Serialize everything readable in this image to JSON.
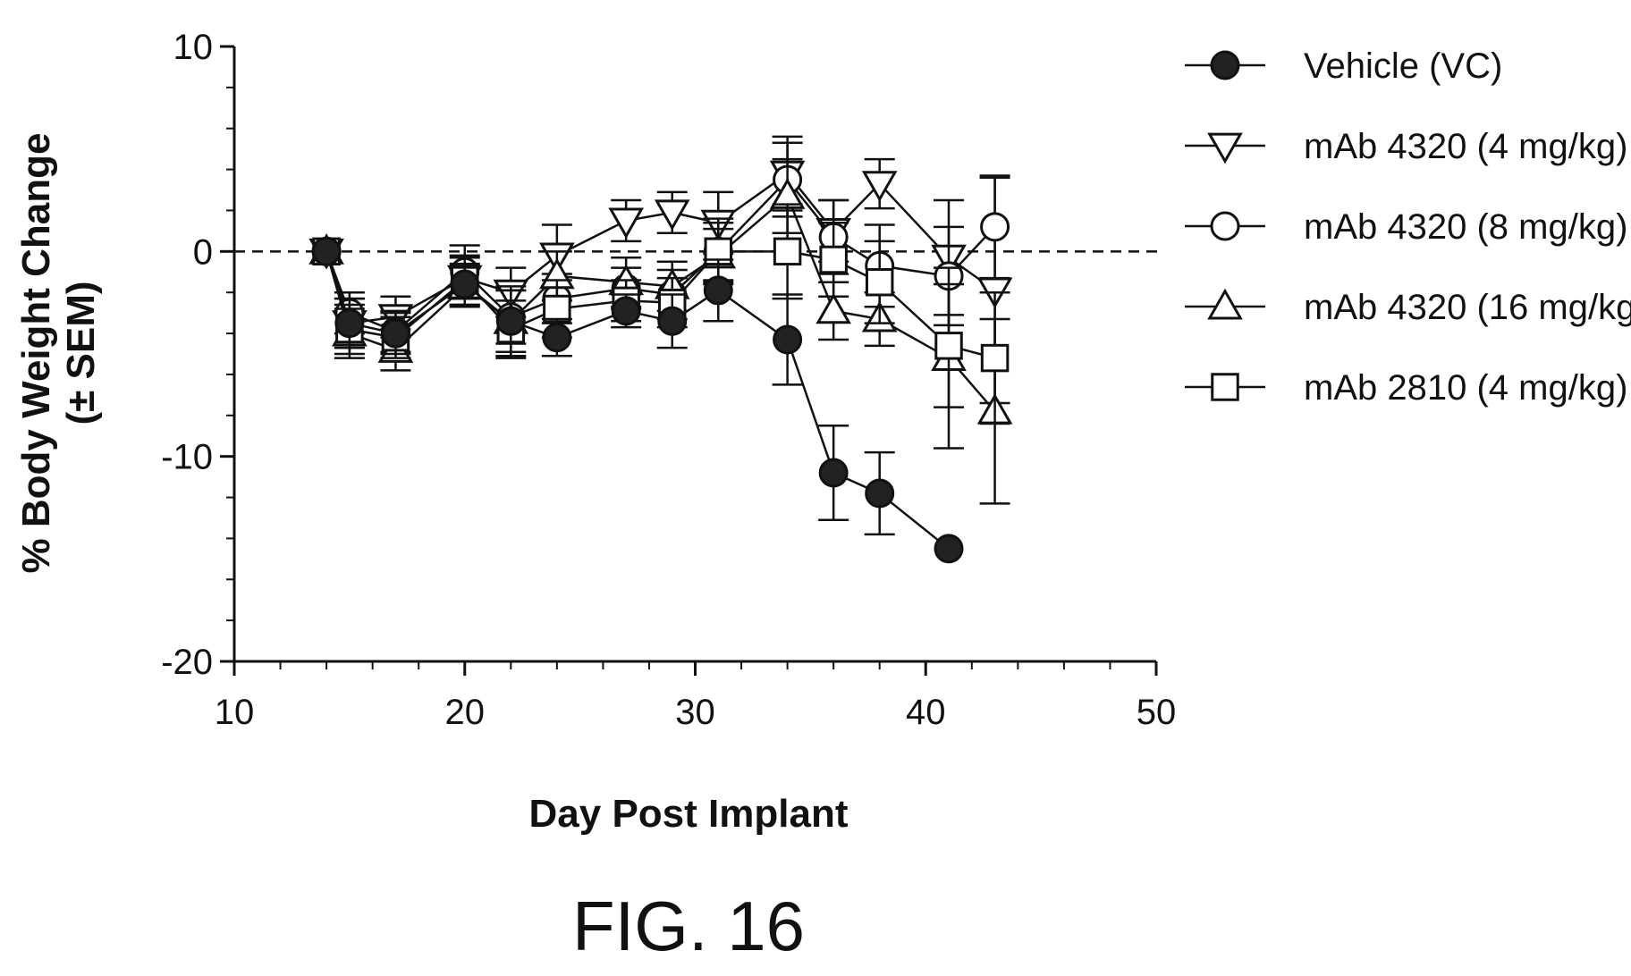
{
  "chart_data": {
    "type": "line",
    "title": "",
    "xlabel": "Day Post Implant",
    "ylabel_line1": "% Body Weight Change",
    "ylabel_line2": "(± SEM)",
    "xlim": [
      10,
      50
    ],
    "ylim": [
      -20,
      10
    ],
    "x_ticks": [
      "10",
      "20",
      "30",
      "40",
      "50"
    ],
    "y_ticks": [
      "10",
      "0",
      "-10",
      "-20"
    ],
    "reference_line_y": 0,
    "grid": false,
    "legend_position": "right",
    "series": [
      {
        "name": "Vehicle (VC)",
        "marker": "circle-filled",
        "x": [
          14,
          15,
          17,
          20,
          22,
          24,
          27,
          29,
          31,
          34,
          36,
          38,
          41
        ],
        "y": [
          0,
          -3.5,
          -4,
          -1.6,
          -3.4,
          -4.2,
          -2.9,
          -3.4,
          -1.9,
          -4.3,
          -10.8,
          -11.8,
          -14.5
        ],
        "err": [
          0,
          1.2,
          1.0,
          1.0,
          1.7,
          0.9,
          0.8,
          1.3,
          1.5,
          2.2,
          2.3,
          2.0,
          0
        ]
      },
      {
        "name": "mAb 4320 (4 mg/kg)",
        "marker": "triangle-down",
        "x": [
          14,
          15,
          17,
          20,
          22,
          24,
          27,
          29,
          31,
          34,
          36,
          38,
          41,
          43
        ],
        "y": [
          0,
          -3.5,
          -3.2,
          -1.3,
          -2.0,
          -0.2,
          1.5,
          1.9,
          1.4,
          3.8,
          1.0,
          3.3,
          -0.3,
          -1.9
        ],
        "err": [
          0,
          1.2,
          1.0,
          1.0,
          1.2,
          1.5,
          1.0,
          1.0,
          1.5,
          1.8,
          1.5,
          1.2,
          2.8,
          5.5
        ]
      },
      {
        "name": "mAb 4320 (8 mg/kg)",
        "marker": "circle-open",
        "x": [
          14,
          15,
          17,
          20,
          22,
          24,
          27,
          29,
          31,
          34,
          36,
          38,
          41,
          43
        ],
        "y": [
          0,
          -3.0,
          -3.9,
          -1.0,
          -3.2,
          -2.3,
          -1.8,
          -2.1,
          0,
          3.5,
          0.7,
          -0.7,
          -1.2,
          1.2
        ],
        "err": [
          0,
          1.0,
          1.0,
          1.3,
          1.3,
          1.2,
          1.0,
          1.2,
          1.4,
          1.8,
          1.8,
          2.0,
          2.4,
          2.5
        ]
      },
      {
        "name": "mAb 4320 (16 mg/kg)",
        "marker": "triangle-up",
        "x": [
          14,
          15,
          17,
          20,
          22,
          24,
          27,
          29,
          31,
          34,
          36,
          38,
          41,
          43
        ],
        "y": [
          0,
          -4.0,
          -4.8,
          -1.7,
          -3.4,
          -1.2,
          -1.5,
          -1.7,
          -0.2,
          2.7,
          -2.9,
          -3.3,
          -5.2,
          -7.8
        ],
        "err": [
          0,
          1.2,
          1.0,
          1.0,
          1.5,
          1.2,
          1.2,
          1.2,
          1.3,
          1.8,
          1.4,
          1.3,
          4.4,
          4.5
        ]
      },
      {
        "name": "mAb 2810 (4 mg/kg)",
        "marker": "square-open",
        "x": [
          14,
          15,
          17,
          20,
          22,
          24,
          27,
          29,
          31,
          34,
          36,
          38,
          41,
          43
        ],
        "y": [
          0,
          -3.8,
          -4.2,
          -1.4,
          -3.8,
          -2.8,
          -2.4,
          -2.5,
          0,
          0,
          -0.4,
          -1.5,
          -4.6,
          -5.2
        ],
        "err": [
          0,
          1.2,
          1.0,
          1.2,
          1.4,
          1.4,
          1.0,
          1.2,
          1.6,
          2.3,
          1.8,
          2.0,
          3.0,
          3.2
        ]
      }
    ]
  },
  "figure_caption": "FIG. 16"
}
